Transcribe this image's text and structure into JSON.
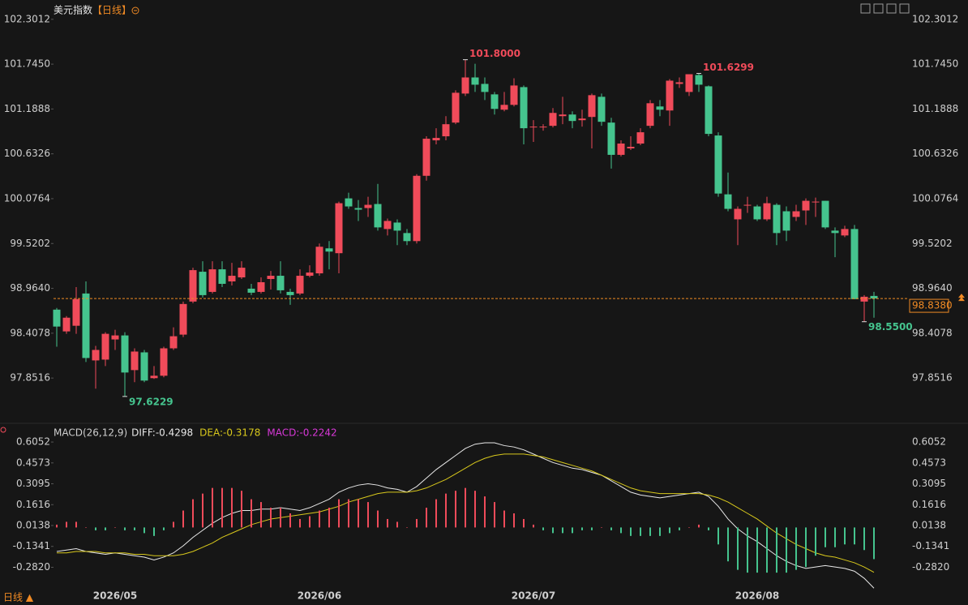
{
  "header": {
    "title": "美元指数",
    "period": "【日线】"
  },
  "footer": {
    "period": "日线 ▲"
  },
  "chart_data": [
    {
      "type": "candlestick",
      "categories": [
        null,
        null,
        null,
        null,
        null,
        null,
        "2026/05",
        null,
        null,
        null,
        null,
        null,
        null,
        null,
        null,
        null,
        null,
        null,
        null,
        null,
        null,
        null,
        null,
        null,
        null,
        null,
        null,
        "2026/06",
        null,
        null,
        null,
        null,
        null,
        null,
        null,
        null,
        null,
        null,
        null,
        null,
        null,
        null,
        null,
        null,
        null,
        null,
        null,
        null,
        null,
        "2026/07",
        null,
        null,
        null,
        null,
        null,
        null,
        null,
        null,
        null,
        null,
        null,
        null,
        null,
        null,
        null,
        null,
        null,
        null,
        null,
        null,
        null,
        null,
        "2026/08",
        null,
        null,
        null,
        null,
        null,
        null,
        null,
        null,
        null,
        null,
        null,
        null
      ],
      "open": [
        98.7,
        98.43,
        98.5,
        98.9,
        98.07,
        98.08,
        98.33,
        98.38,
        97.95,
        98.17,
        97.85,
        97.88,
        98.22,
        98.39,
        98.8,
        99.17,
        98.92,
        99.2,
        99.05,
        99.1,
        98.96,
        98.92,
        99.08,
        99.12,
        98.92,
        98.9,
        99.12,
        99.15,
        99.46,
        99.4,
        100.08,
        99.96,
        99.96,
        100.01,
        99.7,
        99.78,
        99.65,
        99.55,
        100.36,
        100.8,
        100.85,
        101.02,
        101.38,
        101.58,
        101.5,
        101.37,
        101.18,
        101.24,
        101.46,
        100.96,
        100.96,
        100.98,
        101.1,
        101.12,
        101.05,
        101.09,
        101.34,
        101.02,
        100.62,
        100.7,
        100.76,
        100.98,
        101.22,
        101.17,
        101.5,
        101.4,
        101.61,
        101.47,
        100.86,
        100.13,
        99.82,
        99.99,
        99.98,
        99.82,
        100.0,
        99.92,
        99.85,
        99.93,
        100.03,
        100.05,
        99.68,
        99.62,
        99.7,
        98.8,
        98.87
      ],
      "high": [
        98.72,
        98.62,
        98.98,
        99.05,
        98.25,
        98.42,
        98.45,
        98.42,
        98.22,
        98.2,
        98.0,
        98.24,
        98.48,
        98.8,
        99.22,
        99.3,
        99.3,
        99.3,
        99.28,
        99.3,
        99.02,
        99.1,
        99.18,
        99.3,
        98.96,
        99.2,
        99.25,
        99.52,
        99.55,
        100.04,
        100.15,
        100.06,
        100.1,
        100.26,
        99.83,
        99.82,
        99.7,
        100.38,
        100.85,
        100.95,
        101.1,
        101.42,
        101.8,
        101.75,
        101.58,
        101.4,
        101.4,
        101.57,
        101.48,
        101.05,
        101.0,
        101.2,
        101.34,
        101.16,
        101.18,
        101.38,
        101.38,
        101.08,
        100.8,
        100.85,
        100.95,
        101.3,
        101.3,
        101.56,
        101.58,
        101.6,
        101.6299,
        101.48,
        100.9,
        100.4,
        99.98,
        100.1,
        100.0,
        100.1,
        100.02,
        99.98,
        100.0,
        100.08,
        100.09,
        100.05,
        99.72,
        99.74,
        99.75,
        98.88,
        98.92
      ],
      "low": [
        98.24,
        98.4,
        98.4,
        98.05,
        97.72,
        98.0,
        98.2,
        97.6229,
        97.8,
        97.8,
        97.84,
        97.86,
        98.2,
        98.36,
        98.78,
        98.85,
        98.9,
        98.98,
        99.0,
        99.08,
        98.88,
        98.9,
        98.95,
        98.9,
        98.76,
        98.88,
        99.1,
        99.12,
        99.2,
        99.15,
        99.95,
        99.8,
        99.85,
        99.68,
        99.62,
        99.5,
        99.5,
        99.52,
        100.3,
        100.75,
        100.8,
        101.0,
        101.35,
        101.4,
        101.3,
        101.12,
        101.16,
        101.22,
        100.75,
        100.78,
        100.92,
        100.96,
        101.0,
        100.95,
        100.97,
        100.7,
        100.98,
        100.45,
        100.6,
        100.68,
        100.74,
        100.95,
        101.1,
        100.98,
        101.45,
        101.35,
        101.4,
        100.85,
        100.1,
        99.92,
        99.5,
        99.9,
        99.8,
        99.8,
        99.5,
        99.55,
        99.8,
        99.75,
        99.85,
        99.7,
        99.35,
        99.6,
        98.83,
        98.55,
        98.6
      ],
      "close": [
        98.49,
        98.6,
        98.83,
        98.1,
        98.2,
        98.4,
        98.38,
        97.92,
        98.18,
        97.82,
        97.88,
        98.22,
        98.37,
        98.77,
        99.19,
        98.88,
        99.2,
        99.02,
        99.12,
        99.22,
        98.91,
        99.04,
        99.12,
        98.94,
        98.88,
        99.12,
        99.16,
        99.48,
        99.42,
        100.02,
        99.98,
        99.94,
        100.0,
        99.72,
        99.8,
        99.68,
        99.55,
        100.36,
        100.82,
        100.83,
        101.0,
        101.39,
        101.58,
        101.49,
        101.4,
        101.19,
        101.24,
        101.48,
        100.95,
        100.97,
        100.97,
        101.14,
        101.12,
        101.04,
        101.07,
        101.36,
        101.03,
        100.62,
        100.76,
        100.72,
        100.9,
        101.26,
        101.18,
        101.54,
        101.52,
        101.62,
        101.49,
        100.88,
        100.14,
        99.95,
        99.95,
        100.0,
        99.82,
        100.02,
        99.65,
        99.68,
        99.92,
        100.05,
        100.04,
        99.72,
        99.65,
        99.7,
        98.83,
        98.86,
        98.838
      ],
      "up_color": "#f04b5a",
      "down_color": "#45c48e",
      "ylim": [
        97.36,
        102.44
      ],
      "yticks": [
        102.3012,
        {
          "value": 101.745,
          "label": "101.7450"
        },
        101.1888,
        100.6326,
        100.0764,
        99.5202,
        {
          "value": 98.964,
          "label": "98.9640"
        },
        98.4078,
        97.8516
      ],
      "annotations": [
        {
          "value": 101.8,
          "label": "101.8000"
        },
        {
          "value": 101.6299,
          "label": "101.6299"
        },
        {
          "value": 97.6229,
          "label": "97.6229"
        },
        {
          "value": 98.55,
          "label": "98.5500"
        }
      ],
      "last": {
        "value": 98.838,
        "label": "98.8380",
        "color": "#f08a24"
      }
    },
    {
      "type": "macd",
      "title": "MACD(26,12,9)",
      "series": [
        {
          "name": "DIFF:-0.4298",
          "color": "#e8e8e8",
          "values": [
            -0.17,
            -0.16,
            -0.15,
            -0.17,
            -0.18,
            -0.19,
            -0.18,
            -0.19,
            -0.2,
            -0.21,
            -0.23,
            -0.21,
            -0.18,
            -0.13,
            -0.07,
            -0.02,
            0.03,
            0.07,
            0.1,
            0.12,
            0.12,
            0.13,
            0.13,
            0.14,
            0.13,
            0.12,
            0.14,
            0.17,
            0.2,
            0.25,
            0.28,
            0.3,
            0.31,
            0.3,
            0.28,
            0.27,
            0.25,
            0.29,
            0.35,
            0.41,
            0.46,
            0.51,
            0.56,
            0.59,
            0.6,
            0.6,
            0.58,
            0.57,
            0.55,
            0.52,
            0.49,
            0.46,
            0.44,
            0.42,
            0.41,
            0.39,
            0.37,
            0.33,
            0.29,
            0.25,
            0.23,
            0.22,
            0.21,
            0.22,
            0.23,
            0.24,
            0.25,
            0.22,
            0.15,
            0.06,
            -0.01,
            -0.06,
            -0.1,
            -0.15,
            -0.2,
            -0.24,
            -0.27,
            -0.29,
            -0.28,
            -0.27,
            -0.28,
            -0.29,
            -0.31,
            -0.36,
            -0.4298
          ]
        },
        {
          "name": "DEA:-0.3178",
          "color": "#d8c81c",
          "values": [
            -0.18,
            -0.18,
            -0.17,
            -0.17,
            -0.17,
            -0.18,
            -0.18,
            -0.18,
            -0.19,
            -0.19,
            -0.2,
            -0.2,
            -0.2,
            -0.19,
            -0.17,
            -0.14,
            -0.11,
            -0.07,
            -0.04,
            -0.01,
            0.02,
            0.04,
            0.06,
            0.07,
            0.08,
            0.09,
            0.1,
            0.11,
            0.13,
            0.15,
            0.18,
            0.2,
            0.22,
            0.24,
            0.25,
            0.25,
            0.25,
            0.26,
            0.28,
            0.31,
            0.34,
            0.38,
            0.42,
            0.46,
            0.49,
            0.51,
            0.52,
            0.52,
            0.52,
            0.51,
            0.5,
            0.48,
            0.46,
            0.44,
            0.42,
            0.4,
            0.37,
            0.34,
            0.31,
            0.28,
            0.26,
            0.25,
            0.24,
            0.24,
            0.24,
            0.24,
            0.24,
            0.23,
            0.21,
            0.18,
            0.14,
            0.1,
            0.06,
            0.01,
            -0.04,
            -0.08,
            -0.12,
            -0.15,
            -0.18,
            -0.2,
            -0.21,
            -0.23,
            -0.25,
            -0.28,
            -0.3178
          ]
        },
        {
          "name": "MACD:-0.2242",
          "color": "#d838d8",
          "up_color": "#f04b5a",
          "down_color": "#45c48e",
          "values": [
            0.02,
            0.04,
            0.04,
            0,
            -0.02,
            -0.02,
            0,
            -0.02,
            -0.02,
            -0.04,
            -0.06,
            -0.02,
            0.04,
            0.12,
            0.2,
            0.24,
            0.28,
            0.28,
            0.28,
            0.26,
            0.2,
            0.18,
            0.14,
            0.14,
            0.1,
            0.06,
            0.08,
            0.12,
            0.14,
            0.2,
            0.2,
            0.2,
            0.18,
            0.12,
            0.06,
            0.04,
            0,
            0.06,
            0.14,
            0.2,
            0.24,
            0.26,
            0.28,
            0.26,
            0.22,
            0.18,
            0.12,
            0.1,
            0.06,
            0.02,
            -0.02,
            -0.04,
            -0.04,
            -0.04,
            -0.02,
            -0.02,
            0,
            -0.02,
            -0.04,
            -0.06,
            -0.06,
            -0.06,
            -0.06,
            -0.04,
            -0.02,
            0,
            0.02,
            -0.02,
            -0.12,
            -0.24,
            -0.3,
            -0.32,
            -0.32,
            -0.32,
            -0.32,
            -0.32,
            -0.3,
            -0.28,
            -0.2,
            -0.14,
            -0.14,
            -0.12,
            -0.12,
            -0.16,
            -0.2242
          ]
        }
      ],
      "ylim": [
        -0.486,
        0.663
      ],
      "yticks": [
        0.6052,
        0.4573,
        0.3095,
        0.1616,
        0.0138,
        -0.1341,
        {
          "value": -0.282,
          "label": "-0.2820"
        }
      ]
    }
  ]
}
